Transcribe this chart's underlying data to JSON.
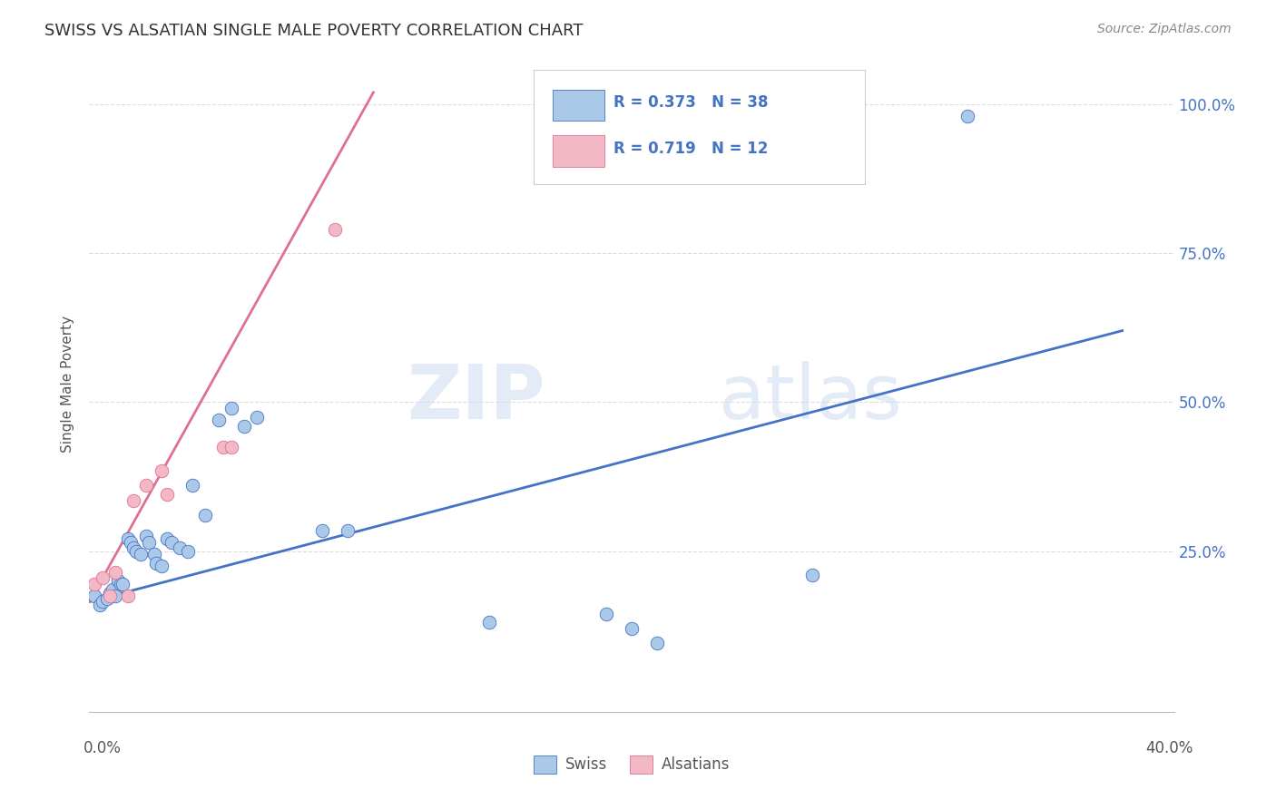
{
  "title": "SWISS VS ALSATIAN SINGLE MALE POVERTY CORRELATION CHART",
  "source": "Source: ZipAtlas.com",
  "ylabel": "Single Male Poverty",
  "ytick_labels": [
    "100.0%",
    "75.0%",
    "50.0%",
    "25.0%"
  ],
  "ytick_positions": [
    1.0,
    0.75,
    0.5,
    0.25
  ],
  "xtick_labels": [
    "0.0%",
    "40.0%"
  ],
  "xtick_positions": [
    0.0,
    0.4
  ],
  "xlim": [
    0.0,
    0.42
  ],
  "ylim": [
    -0.02,
    1.08
  ],
  "swiss_R": "0.373",
  "swiss_N": "38",
  "alsatian_R": "0.719",
  "alsatian_N": "12",
  "swiss_color": "#aac8e8",
  "alsatian_color": "#f2b8c6",
  "swiss_line_color": "#4472c4",
  "alsatian_line_color": "#e07090",
  "legend_text_color": "#4472c4",
  "watermark_zip": "ZIP",
  "watermark_atlas": "atlas",
  "swiss_x": [
    0.002,
    0.004,
    0.005,
    0.007,
    0.008,
    0.009,
    0.01,
    0.011,
    0.012,
    0.013,
    0.015,
    0.016,
    0.017,
    0.018,
    0.02,
    0.022,
    0.023,
    0.025,
    0.026,
    0.028,
    0.03,
    0.032,
    0.035,
    0.038,
    0.04,
    0.045,
    0.05,
    0.055,
    0.06,
    0.065,
    0.09,
    0.1,
    0.155,
    0.2,
    0.21,
    0.22,
    0.28,
    0.34
  ],
  "swiss_y": [
    0.175,
    0.16,
    0.165,
    0.17,
    0.18,
    0.185,
    0.175,
    0.2,
    0.195,
    0.195,
    0.27,
    0.265,
    0.255,
    0.25,
    0.245,
    0.275,
    0.265,
    0.245,
    0.23,
    0.225,
    0.27,
    0.265,
    0.255,
    0.25,
    0.36,
    0.31,
    0.47,
    0.49,
    0.46,
    0.475,
    0.285,
    0.285,
    0.13,
    0.145,
    0.12,
    0.095,
    0.21,
    0.98
  ],
  "alsatian_x": [
    0.002,
    0.005,
    0.008,
    0.01,
    0.015,
    0.017,
    0.022,
    0.028,
    0.03,
    0.052,
    0.055,
    0.095
  ],
  "alsatian_y": [
    0.195,
    0.205,
    0.175,
    0.215,
    0.175,
    0.335,
    0.36,
    0.385,
    0.345,
    0.425,
    0.425,
    0.79
  ],
  "swiss_trend_x": [
    0.0,
    0.4
  ],
  "swiss_trend_y": [
    0.165,
    0.62
  ],
  "alsatian_trend_x": [
    0.0,
    0.11
  ],
  "alsatian_trend_y": [
    0.165,
    1.02
  ],
  "background_color": "#ffffff",
  "grid_color": "#dddddd"
}
